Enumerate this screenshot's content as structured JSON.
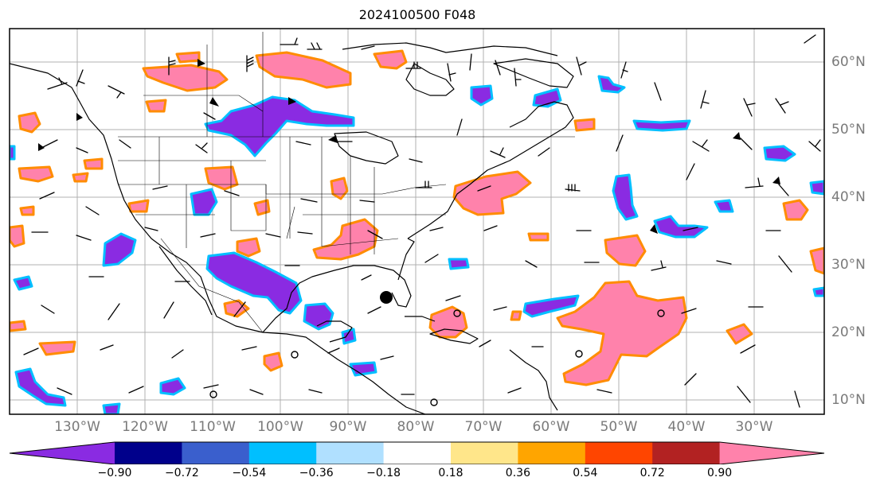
{
  "title": "2024100500 F048",
  "longitude_labels": [
    "130°W",
    "120°W",
    "110°W",
    "100°W",
    "90°W",
    "80°W",
    "70°W",
    "60°W",
    "50°W",
    "40°W",
    "30°W"
  ],
  "latitude_labels": [
    "60°N",
    "50°N",
    "40°N",
    "30°N",
    "20°N",
    "10°N"
  ],
  "colorbar": {
    "ticks": [
      "−0.90",
      "−0.72",
      "−0.54",
      "−0.36",
      "−0.18",
      "0.18",
      "0.36",
      "0.54",
      "0.72",
      "0.90"
    ],
    "colors": [
      "#8a2be2",
      "#00008b",
      "#3a5fcd",
      "#00bfff",
      "#b0e0ff",
      "#ffffff",
      "#ffe68a",
      "#ffa500",
      "#ff4500",
      "#b22222",
      "#ff82ab"
    ]
  }
}
